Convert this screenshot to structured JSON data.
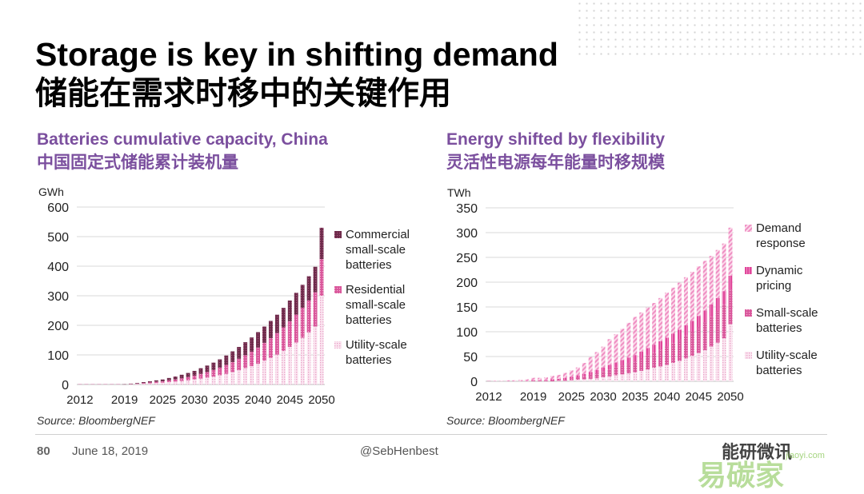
{
  "slide": {
    "title_en": "Storage is key in shifting demand",
    "title_zh": "储能在需求时移中的关键作用",
    "footer": {
      "page_number": "80",
      "date": "June 18, 2019",
      "handle": "@SebHenbest"
    },
    "watermark": {
      "line1": "能研微讯",
      "line2": "易碳家",
      "line3": "jiaoyi.com"
    },
    "colors": {
      "accent": "#7b4f9e",
      "commercial": "#6d2a4a",
      "residential": "#d9559a",
      "utility": "#e9a6c9",
      "demand_response": "#ef8fc3"
    }
  },
  "chart_data": [
    {
      "type": "bar",
      "stacked": true,
      "title": "Batteries cumulative capacity, China",
      "subtitle": "中国固定式储能累计装机量",
      "ylabel": "GWh",
      "ylim": [
        0,
        600
      ],
      "yticks": [
        "0",
        "100",
        "200",
        "300",
        "400",
        "500",
        "600"
      ],
      "xticks": [
        "2012",
        "2019",
        "2025",
        "2030",
        "2035",
        "2040",
        "2045",
        "2050"
      ],
      "legend_position": "right",
      "source": "Source: BloombergNEF",
      "categories": [
        "2012",
        "2013",
        "2014",
        "2015",
        "2016",
        "2017",
        "2018",
        "2019",
        "2020",
        "2021",
        "2022",
        "2023",
        "2024",
        "2025",
        "2026",
        "2027",
        "2028",
        "2029",
        "2030",
        "2031",
        "2032",
        "2033",
        "2034",
        "2035",
        "2036",
        "2037",
        "2038",
        "2039",
        "2040",
        "2041",
        "2042",
        "2043",
        "2044",
        "2045",
        "2046",
        "2047",
        "2048",
        "2049",
        "2050"
      ],
      "series": [
        {
          "name": "Utility-scale batteries",
          "legend": [
            "Utility-scale",
            "batteries"
          ],
          "pattern": "utility",
          "values": [
            0,
            0,
            0,
            0,
            0,
            0,
            0,
            0,
            1,
            2,
            3,
            4,
            5,
            6,
            8,
            10,
            12,
            14,
            17,
            20,
            23,
            27,
            31,
            36,
            42,
            48,
            55,
            62,
            70,
            80,
            90,
            101,
            113,
            127,
            142,
            158,
            176,
            196,
            300
          ]
        },
        {
          "name": "Residential small-scale batteries",
          "legend": [
            "Residential",
            "small-scale",
            "batteries"
          ],
          "pattern": "residential",
          "values": [
            0,
            0,
            0,
            0,
            0,
            0,
            0,
            0,
            1,
            1,
            2,
            3,
            4,
            5,
            6,
            7,
            9,
            11,
            13,
            16,
            19,
            22,
            26,
            30,
            34,
            39,
            44,
            49,
            55,
            61,
            67,
            73,
            80,
            87,
            94,
            101,
            108,
            116,
            124
          ]
        },
        {
          "name": "Commercial small-scale batteries",
          "legend": [
            "Commercial",
            "small-scale",
            "batteries"
          ],
          "pattern": "commercial",
          "values": [
            0,
            0,
            0,
            0,
            0,
            0,
            0,
            1,
            1,
            2,
            3,
            4,
            5,
            6,
            8,
            10,
            12,
            14,
            16,
            19,
            22,
            25,
            28,
            32,
            36,
            40,
            44,
            48,
            52,
            55,
            58,
            62,
            66,
            70,
            74,
            78,
            82,
            86,
            106
          ]
        }
      ]
    },
    {
      "type": "bar",
      "stacked": true,
      "title": "Energy shifted by flexibility",
      "subtitle": "灵活性电源每年能量时移规模",
      "ylabel": "TWh",
      "ylim": [
        0,
        350
      ],
      "yticks": [
        "0",
        "50",
        "100",
        "150",
        "200",
        "250",
        "300",
        "350"
      ],
      "xticks": [
        "2012",
        "2019",
        "2025",
        "2030",
        "2035",
        "2040",
        "2045",
        "2050"
      ],
      "legend_position": "right",
      "source": "Source: BloombergNEF",
      "categories": [
        "2012",
        "2013",
        "2014",
        "2015",
        "2016",
        "2017",
        "2018",
        "2019",
        "2020",
        "2021",
        "2022",
        "2023",
        "2024",
        "2025",
        "2026",
        "2027",
        "2028",
        "2029",
        "2030",
        "2031",
        "2032",
        "2033",
        "2034",
        "2035",
        "2036",
        "2037",
        "2038",
        "2039",
        "2040",
        "2041",
        "2042",
        "2043",
        "2044",
        "2045",
        "2046",
        "2047",
        "2048",
        "2049",
        "2050"
      ],
      "series": [
        {
          "name": "Utility-scale batteries",
          "legend": [
            "Utility-scale",
            "batteries"
          ],
          "pattern": "utility",
          "values": [
            0,
            0,
            0,
            0,
            0,
            0,
            0,
            0,
            0,
            0,
            0,
            1,
            1,
            2,
            3,
            4,
            5,
            6,
            8,
            10,
            12,
            14,
            16,
            18,
            21,
            24,
            27,
            30,
            33,
            37,
            41,
            46,
            51,
            57,
            63,
            70,
            78,
            87,
            115
          ]
        },
        {
          "name": "Small-scale batteries",
          "legend": [
            "Small-scale",
            "batteries"
          ],
          "pattern": "residential",
          "values": [
            0,
            0,
            0,
            0,
            0,
            0,
            0,
            1,
            1,
            1,
            2,
            2,
            3,
            4,
            5,
            6,
            8,
            10,
            12,
            14,
            16,
            18,
            20,
            22,
            25,
            28,
            31,
            34,
            37,
            40,
            43,
            46,
            49,
            52,
            56,
            60,
            64,
            68,
            70
          ]
        },
        {
          "name": "Dynamic pricing",
          "legend": [
            "Dynamic",
            "pricing"
          ],
          "pattern": "dynamic",
          "values": [
            0,
            0,
            0,
            0,
            0,
            0,
            0,
            1,
            1,
            1,
            2,
            2,
            3,
            3,
            4,
            5,
            6,
            7,
            8,
            9,
            10,
            11,
            12,
            13,
            14,
            15,
            16,
            17,
            18,
            19,
            20,
            21,
            22,
            23,
            24,
            25,
            26,
            27,
            28
          ]
        },
        {
          "name": "Demand response",
          "legend": [
            "Demand",
            "response"
          ],
          "pattern": "demand",
          "values": [
            0,
            1,
            1,
            2,
            2,
            3,
            4,
            5,
            5,
            6,
            7,
            8,
            10,
            13,
            16,
            22,
            30,
            36,
            42,
            52,
            57,
            63,
            70,
            77,
            79,
            82,
            84,
            87,
            91,
            93,
            95,
            97,
            99,
            100,
            100,
            98,
            97,
            96,
            97
          ]
        }
      ]
    }
  ]
}
